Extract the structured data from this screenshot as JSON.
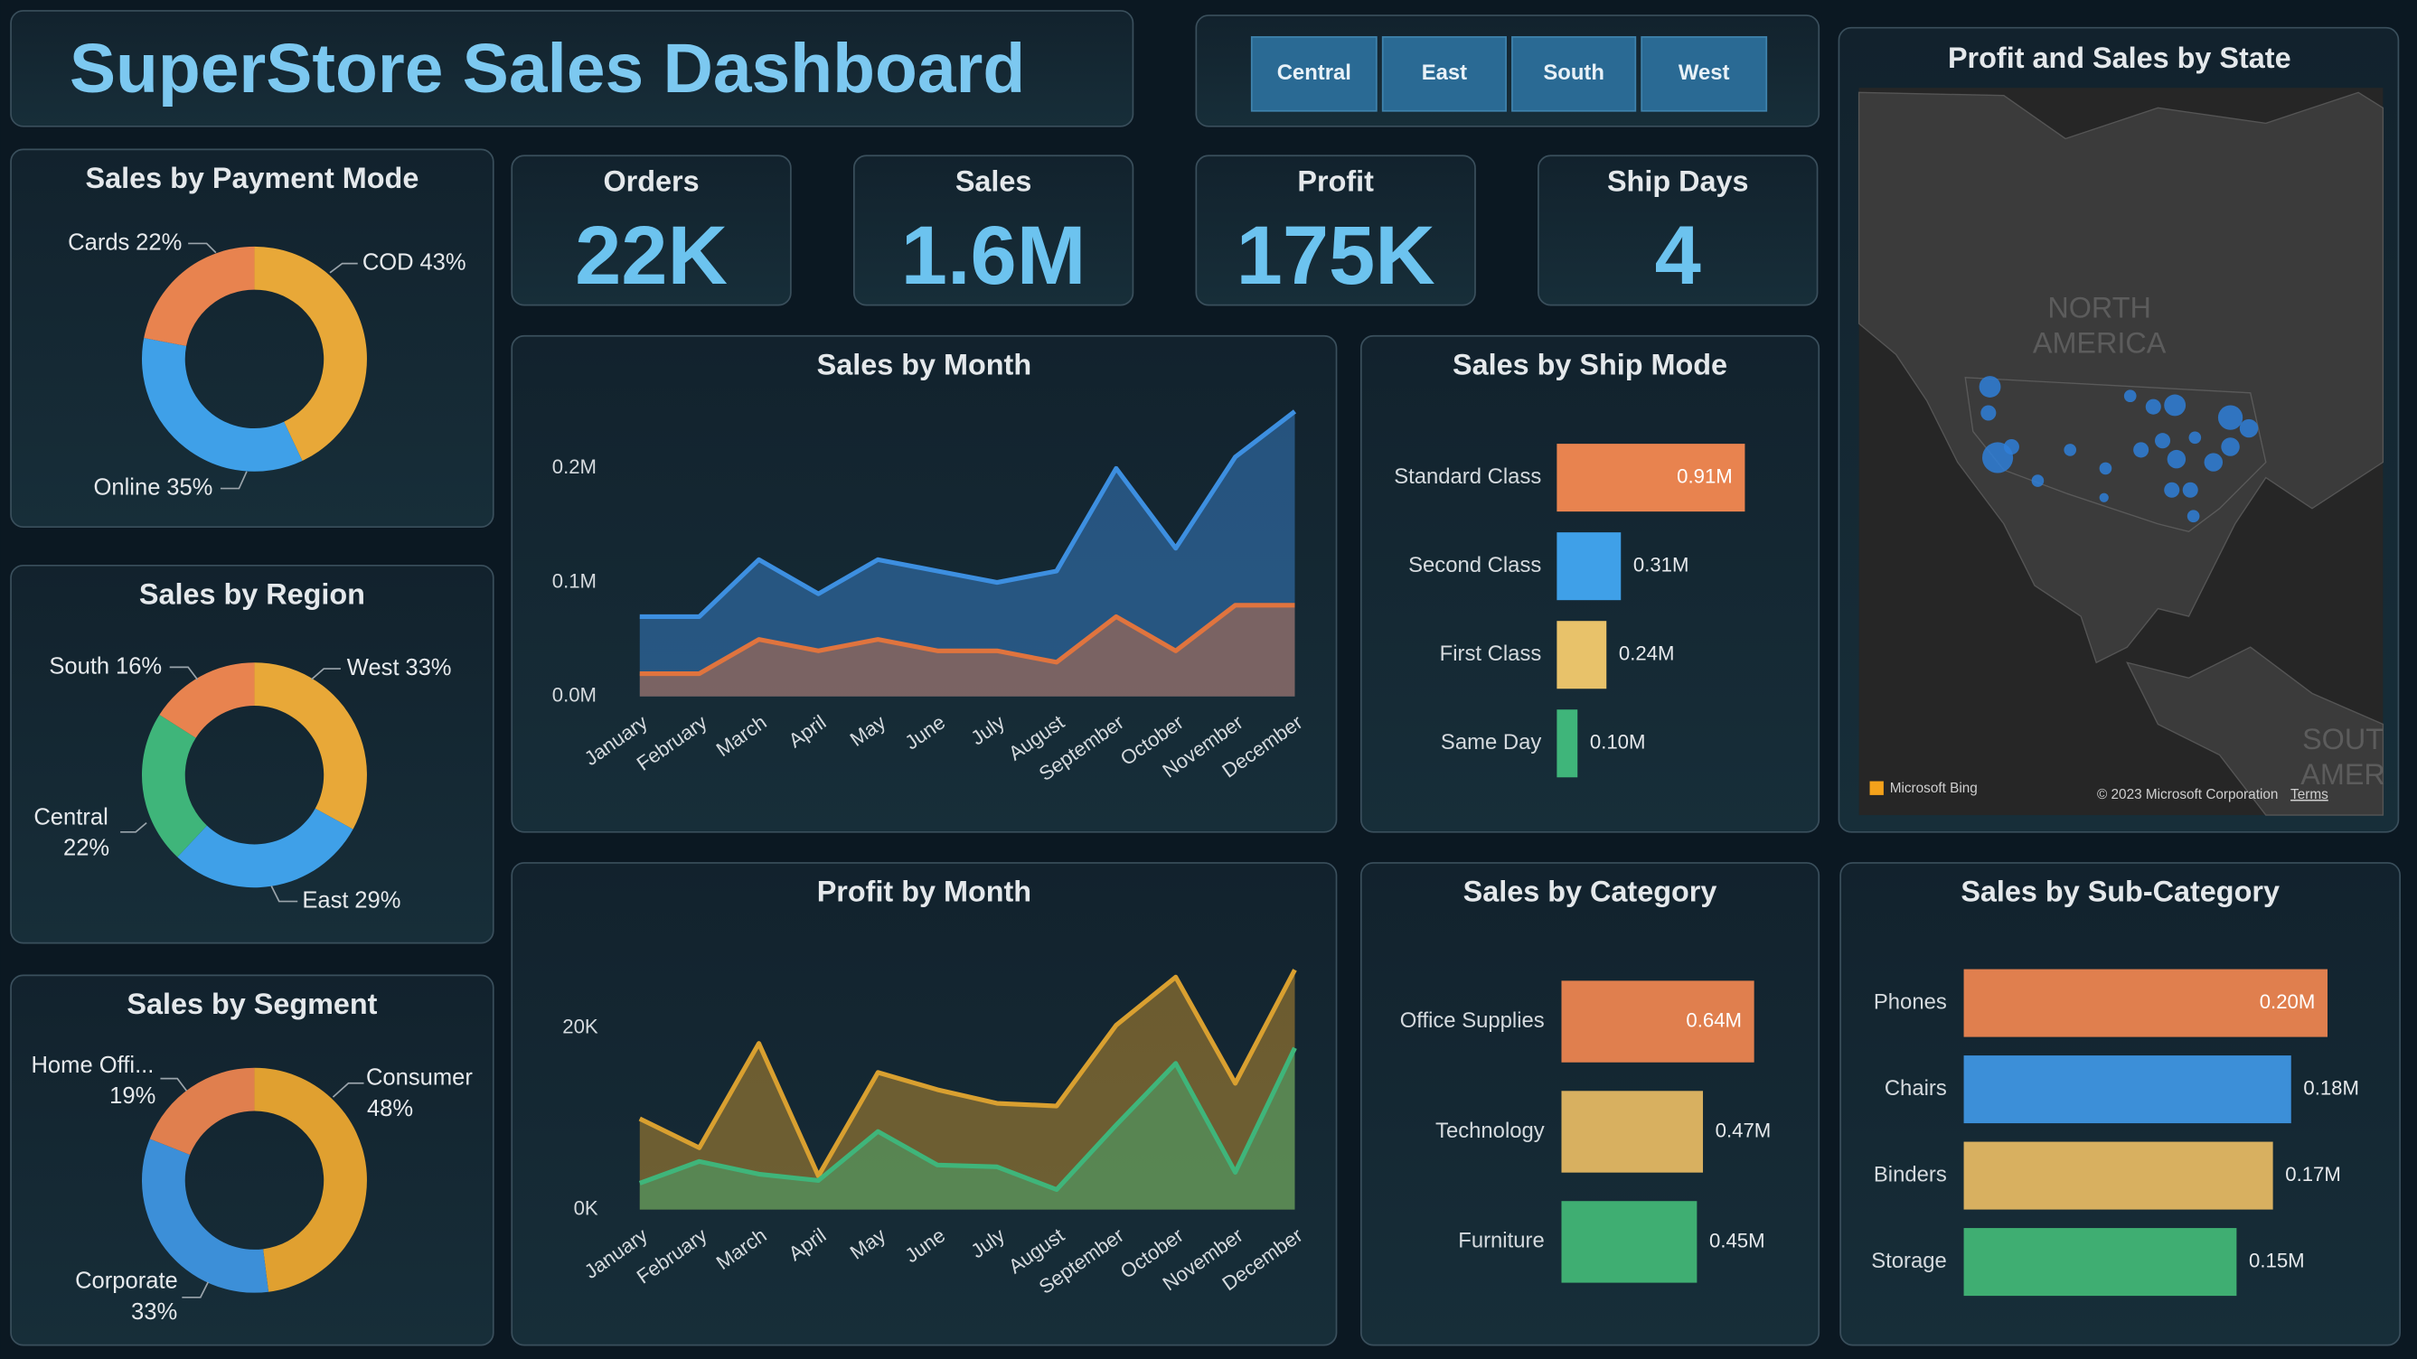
{
  "header": {
    "title": "SuperStore Sales Dashboard"
  },
  "slicer": {
    "options": [
      "Central",
      "East",
      "South",
      "West"
    ]
  },
  "kpis": [
    {
      "label": "Orders",
      "value": "22K"
    },
    {
      "label": "Sales",
      "value": "1.6M"
    },
    {
      "label": "Profit",
      "value": "175K"
    },
    {
      "label": "Ship Days",
      "value": 4
    }
  ],
  "map": {
    "title": "Profit and Sales by State",
    "labels": [
      "NORTH",
      "AMERICA",
      "SOUT",
      "AMER"
    ],
    "attribution": [
      "Microsoft Bing",
      "© 2023 Microsoft Corporation",
      "Terms"
    ]
  },
  "chart_data": [
    {
      "type": "donut",
      "title": "Sales by Payment Mode",
      "categories": [
        "COD",
        "Online",
        "Cards"
      ],
      "values": [
        43,
        35,
        22
      ],
      "value_labels": [
        "43%",
        "35%",
        "22%"
      ],
      "colors": [
        "#e8a838",
        "#3fa0e8",
        "#e8834f"
      ]
    },
    {
      "type": "donut",
      "title": "Sales by Region",
      "categories": [
        "West",
        "East",
        "Central",
        "South"
      ],
      "values": [
        33,
        29,
        22,
        16
      ],
      "value_labels": [
        "33%",
        "29%",
        "22%",
        "16%"
      ],
      "colors": [
        "#e8a838",
        "#3fa0e8",
        "#3fb57a",
        "#e8834f"
      ]
    },
    {
      "type": "donut",
      "title": "Sales by Segment",
      "categories": [
        "Consumer",
        "Corporate",
        "Home Offi..."
      ],
      "values": [
        48,
        33,
        19
      ],
      "value_labels": [
        "48%",
        "33%",
        "19%"
      ],
      "colors": [
        "#e0a030",
        "#3c8fd8",
        "#e07f4e"
      ]
    },
    {
      "type": "area",
      "title": "Sales by Month",
      "categories": [
        "January",
        "February",
        "March",
        "April",
        "May",
        "June",
        "July",
        "August",
        "September",
        "October",
        "November",
        "December"
      ],
      "series": [
        {
          "color": "#3d8fe0",
          "values": [
            0.07,
            0.07,
            0.12,
            0.09,
            0.12,
            0.11,
            0.1,
            0.11,
            0.2,
            0.13,
            0.21,
            0.25
          ]
        },
        {
          "color": "#e0743e",
          "values": [
            0.02,
            0.02,
            0.05,
            0.04,
            0.05,
            0.04,
            0.04,
            0.03,
            0.07,
            0.04,
            0.08,
            0.08
          ]
        }
      ],
      "ylim": [
        0,
        0.25
      ],
      "yticks": [
        {
          "value": 0,
          "label": "0.0M"
        },
        {
          "value": 0.1,
          "label": "0.1M"
        },
        {
          "value": 0.2,
          "label": "0.2M"
        }
      ],
      "grid": false
    },
    {
      "type": "bar",
      "orientation": "horizontal",
      "title": "Sales by Ship Mode",
      "categories": [
        "Standard Class",
        "Second Class",
        "First Class",
        "Same Day"
      ],
      "values": [
        0.91,
        0.31,
        0.24,
        0.1
      ],
      "value_labels": [
        "0.91M",
        "0.31M",
        "0.24M",
        "0.10M"
      ],
      "colors": [
        "#e8834f",
        "#3fa0e8",
        "#e8c26a",
        "#3fb57a"
      ]
    },
    {
      "type": "area",
      "title": "Profit by Month",
      "categories": [
        "January",
        "February",
        "March",
        "April",
        "May",
        "June",
        "July",
        "August",
        "September",
        "October",
        "November",
        "December"
      ],
      "series": [
        {
          "color": "#d9a030",
          "values": [
            10.0,
            6.8,
            18.3,
            3.7,
            15.1,
            13.2,
            11.7,
            11.4,
            20.3,
            25.6,
            13.9,
            26.4
          ]
        },
        {
          "color": "#3fb57a",
          "values": [
            2.9,
            5.3,
            3.9,
            3.2,
            8.6,
            4.9,
            4.7,
            2.2,
            9.3,
            16.1,
            4.1,
            17.8
          ]
        }
      ],
      "ylim": [
        0,
        28
      ],
      "yticks": [
        {
          "value": 0,
          "label": "0K"
        },
        {
          "value": 20,
          "label": "20K"
        }
      ],
      "grid": false
    },
    {
      "type": "bar",
      "orientation": "horizontal",
      "title": "Sales by Category",
      "categories": [
        "Office Supplies",
        "Technology",
        "Furniture"
      ],
      "values": [
        0.64,
        0.47,
        0.45
      ],
      "value_labels": [
        "0.64M",
        "0.47M",
        "0.45M"
      ],
      "colors": [
        "#e07f4e",
        "#d8b060",
        "#3fae72"
      ]
    },
    {
      "type": "bar",
      "orientation": "horizontal",
      "title": "Sales by Sub-Category",
      "categories": [
        "Phones",
        "Chairs",
        "Binders",
        "Storage"
      ],
      "values": [
        0.2,
        0.18,
        0.17,
        0.15
      ],
      "value_labels": [
        "0.20M",
        "0.18M",
        "0.17M",
        "0.15M"
      ],
      "colors": [
        "#e07f4e",
        "#3c8fd8",
        "#d8b060",
        "#3fae72"
      ]
    }
  ]
}
